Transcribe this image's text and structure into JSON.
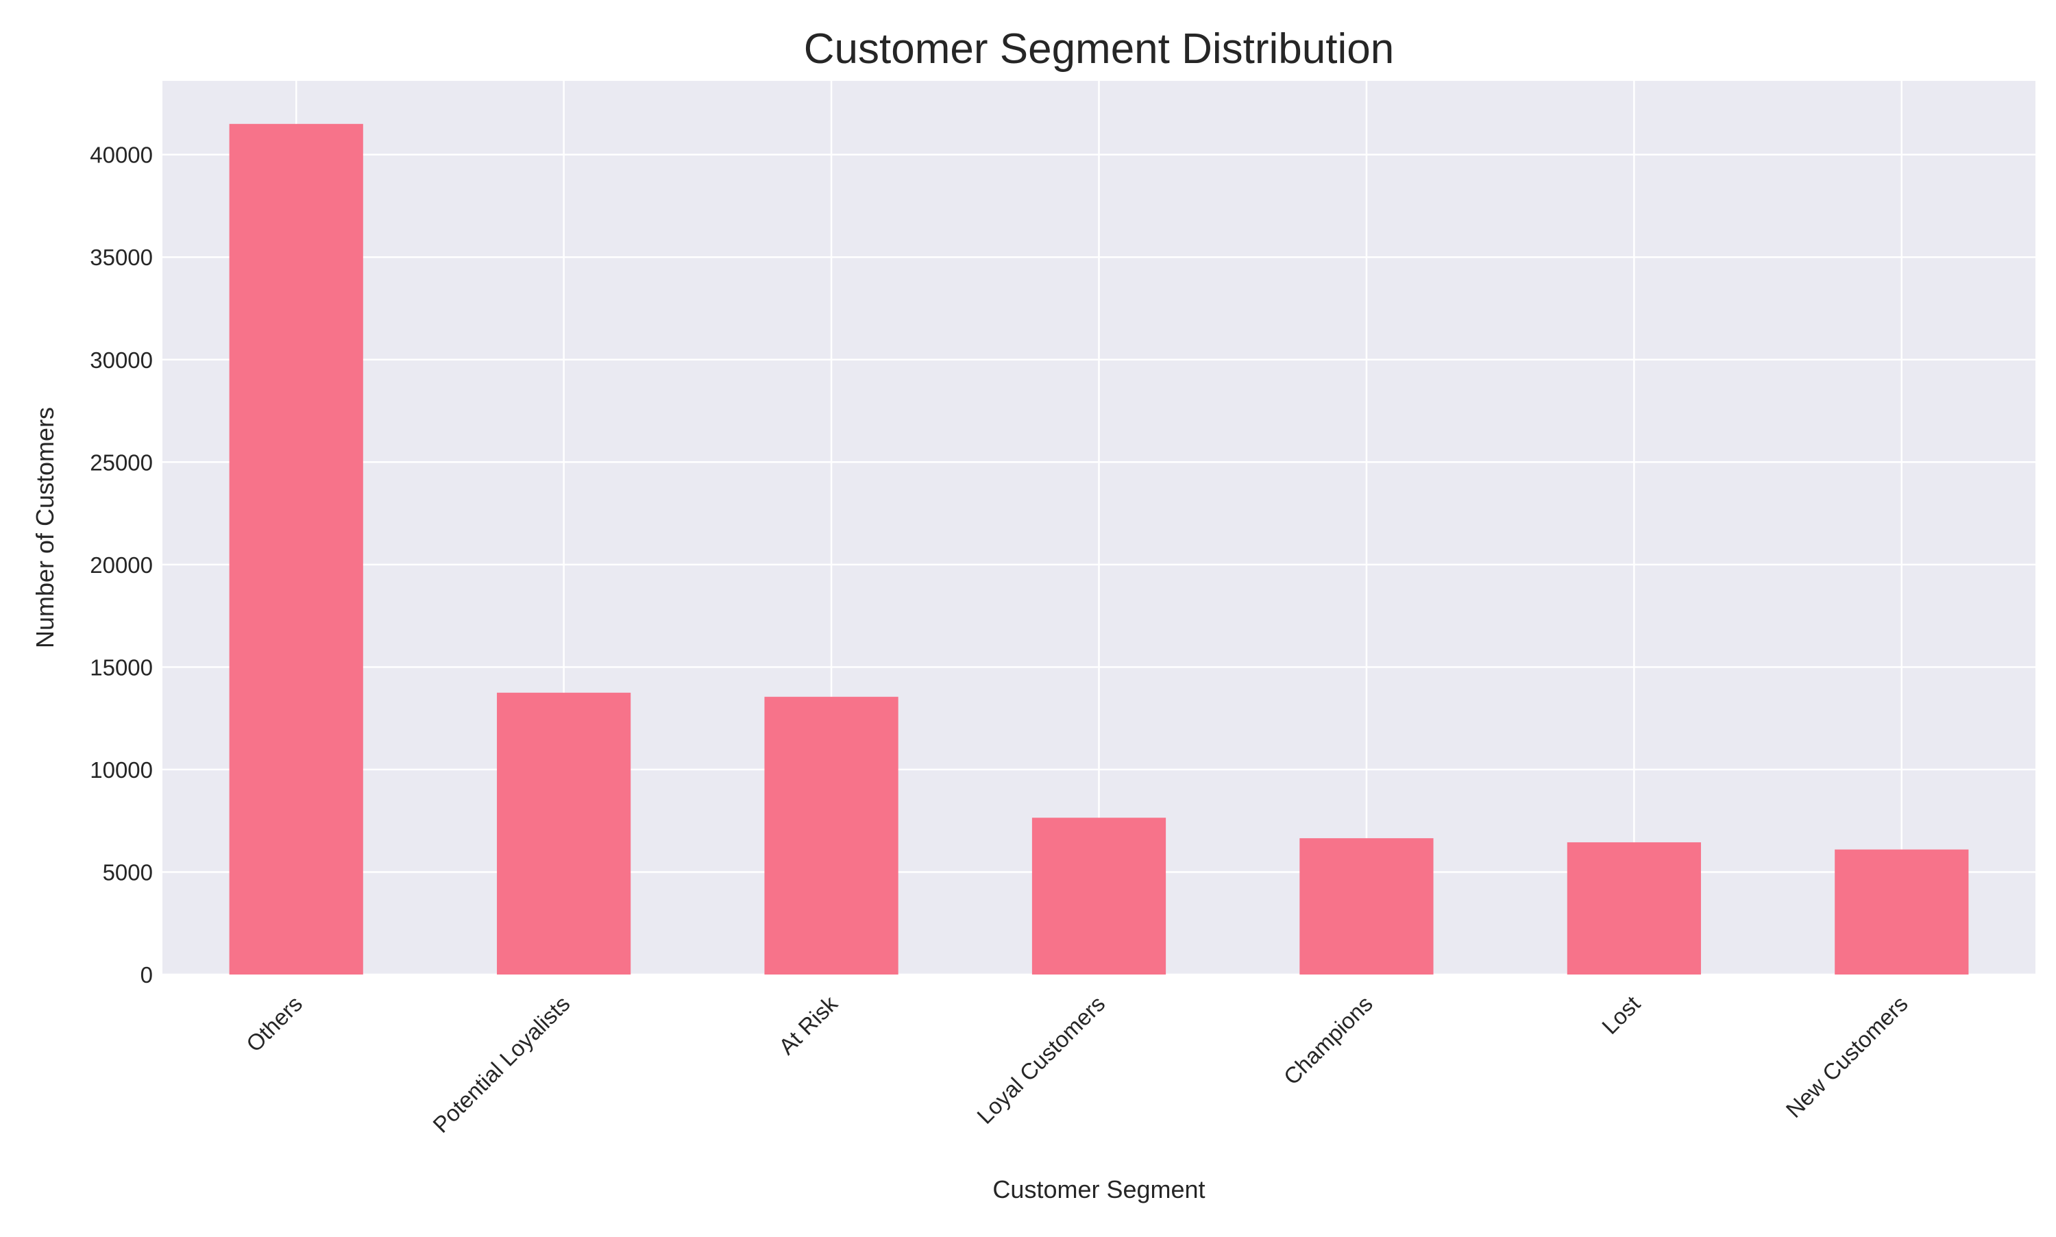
{
  "chart_data": {
    "type": "bar",
    "title": "Customer Segment Distribution",
    "xlabel": "Customer Segment",
    "ylabel": "Number of Customers",
    "categories": [
      "Others",
      "Potential Loyalists",
      "At Risk",
      "Loyal Customers",
      "Champions",
      "Lost",
      "New Customers"
    ],
    "values": [
      41500,
      13750,
      13550,
      7650,
      6650,
      6450,
      6100
    ],
    "ylim": [
      0,
      43600
    ],
    "yticks": [
      0,
      5000,
      10000,
      15000,
      20000,
      25000,
      30000,
      35000,
      40000
    ],
    "grid": true,
    "legend": "none",
    "colors": {
      "bar": "#f7738a",
      "plot_background": "#eaeaf2",
      "grid": "#ffffff",
      "text": "#262626"
    }
  }
}
